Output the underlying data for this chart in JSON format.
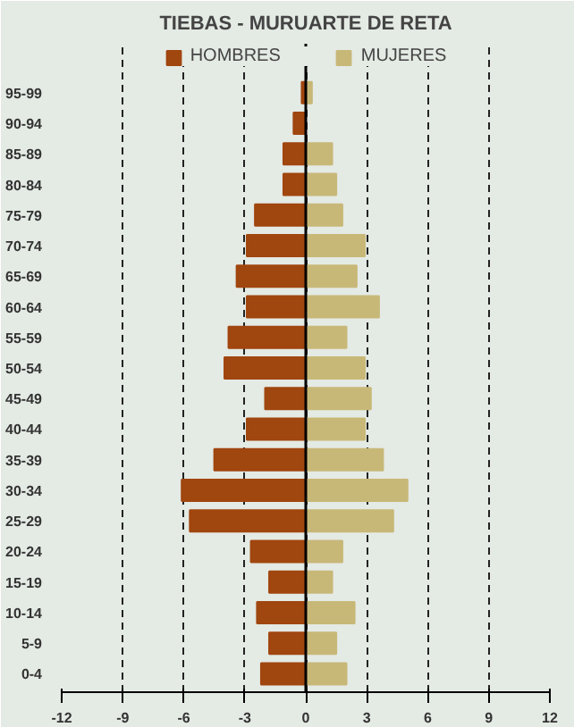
{
  "chart_data": {
    "type": "bar",
    "orientation": "horizontal",
    "title": "TIEBAS - MURUARTE DE RETA",
    "categories": [
      "95-99",
      "90-94",
      "85-89",
      "80-84",
      "75-79",
      "70-74",
      "65-69",
      "60-64",
      "55-59",
      "50-54",
      "45-49",
      "40-44",
      "35-39",
      "30-34",
      "25-29",
      "20-24",
      "15-19",
      "10-14",
      "5-9",
      "0-4"
    ],
    "series": [
      {
        "name": "HOMBRES",
        "color": "#a0460f",
        "values": [
          -0.2,
          -0.6,
          -1.1,
          -1.1,
          -2.5,
          -2.9,
          -3.4,
          -2.9,
          -3.8,
          -4.0,
          -2.0,
          -2.9,
          -4.5,
          -6.1,
          -5.7,
          -2.7,
          -1.8,
          -2.4,
          -1.8,
          -2.2
        ]
      },
      {
        "name": "MUJERES",
        "color": "#c8b878",
        "values": [
          0.3,
          0,
          1.3,
          1.5,
          1.8,
          2.9,
          2.5,
          3.6,
          2.0,
          2.9,
          3.2,
          2.9,
          3.8,
          5.0,
          4.3,
          1.8,
          1.3,
          2.4,
          1.5,
          2.0
        ]
      }
    ],
    "xlim": [
      -12,
      12
    ],
    "xticks": [
      -12,
      -9,
      -6,
      -3,
      0,
      3,
      6,
      9,
      12
    ],
    "grid": "x",
    "legend": "top",
    "stacked": true
  }
}
